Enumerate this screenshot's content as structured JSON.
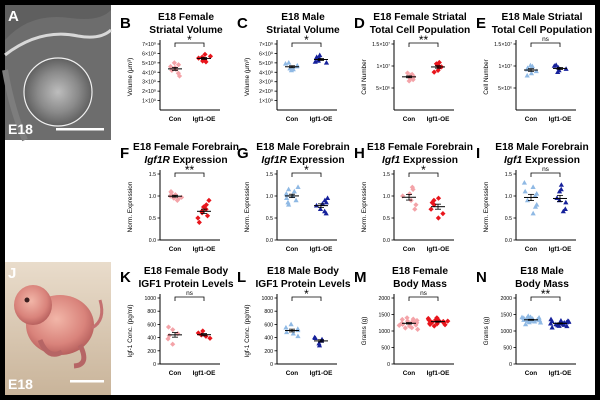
{
  "colors": {
    "female_light": "#f4a3a8",
    "female_dark": "#e8151c",
    "male_light": "#8fb9e4",
    "male_dark": "#16219b",
    "axis": "#000000",
    "bg": "#ffffff"
  },
  "images": [
    {
      "letter": "A",
      "tag": "E18",
      "kind": "brain-section"
    },
    {
      "letter": "J",
      "tag": "E18",
      "kind": "embryo-photo"
    }
  ],
  "panels": [
    {
      "letter": "B",
      "t1": "E18 Female",
      "t2": "Striatal Volume",
      "t2i": "",
      "ylabel": "Volume (μm³)",
      "ticks": [
        "1×10⁹",
        "2×10⁹",
        "3×10⁹",
        "4×10⁹",
        "5×10⁹",
        "6×10⁹",
        "7×10⁹"
      ],
      "sig": "*",
      "xcats": [
        "Con",
        "Igf1-OE"
      ],
      "sex": "female",
      "chart_data": {
        "type": "scatter",
        "categories": [
          "Con",
          "Igf1-OE"
        ],
        "ylabel": "Volume (μm³)",
        "ylim": [
          0,
          7000000000.0
        ],
        "series": [
          {
            "values": [
              4600000000.0,
              3900000000.0,
              4300000000.0,
              5000000000.0,
              4200000000.0,
              3600000000.0,
              4800000000.0,
              4500000000.0
            ]
          },
          {
            "values": [
              5300000000.0,
              5600000000.0,
              5200000000.0,
              5900000000.0,
              5500000000.0,
              5100000000.0,
              5700000000.0
            ]
          }
        ]
      }
    },
    {
      "letter": "C",
      "t1": "E18 Male",
      "t2": "Striatal Volume",
      "t2i": "",
      "ylabel": "Volume (μm³)",
      "ticks": [
        "1×10⁹",
        "2×10⁹",
        "3×10⁹",
        "4×10⁹",
        "5×10⁹",
        "6×10⁹",
        "7×10⁹"
      ],
      "sig": "*",
      "xcats": [
        "Con",
        "Igf1-OE"
      ],
      "sex": "male",
      "chart_data": {
        "type": "scatter",
        "categories": [
          "Con",
          "Igf1-OE"
        ],
        "ylabel": "Volume (μm³)",
        "ylim": [
          0,
          7000000000.0
        ],
        "series": [
          {
            "values": [
              4600000000.0,
              4200000000.0,
              5000000000.0,
              4300000000.0,
              4900000000.0,
              4400000000.0,
              4700000000.0
            ]
          },
          {
            "values": [
              5200000000.0,
              5600000000.0,
              5100000000.0,
              5500000000.0,
              5000000000.0,
              5800000000.0,
              5300000000.0
            ]
          }
        ]
      }
    },
    {
      "letter": "D",
      "t1": "E18 Female Striatal",
      "t2": "Total Cell Population",
      "t2i": "",
      "ylabel": "Cell Number",
      "ticks": [
        "5×10⁶",
        "1×10⁷",
        "1.5×10⁷"
      ],
      "sig": "**",
      "xcats": [
        "Con",
        "Igf1-OE"
      ],
      "sex": "female",
      "chart_data": {
        "type": "scatter",
        "categories": [
          "Con",
          "Igf1-OE"
        ],
        "ylabel": "Cell Number",
        "ylim": [
          0,
          15000000.0
        ],
        "series": [
          {
            "values": [
              7500000.0,
              6900000.0,
              8100000.0,
              7700000.0,
              7200000.0,
              8400000.0,
              7900000.0,
              6600000.0
            ]
          },
          {
            "values": [
              9600000.0,
              10500000.0,
              9000000.0,
              10200000.0,
              9800000.0,
              8600000.0,
              10800000.0
            ]
          }
        ]
      }
    },
    {
      "letter": "E",
      "t1": "E18 Male Striatal",
      "t2": "Total Cell Population",
      "t2i": "",
      "ylabel": "Cell Number",
      "ticks": [
        "5×10⁶",
        "1×10⁷",
        "1.5×10⁷"
      ],
      "sig": "ns",
      "xcats": [
        "Con",
        "Igf1-OE"
      ],
      "sex": "male",
      "chart_data": {
        "type": "scatter",
        "categories": [
          "Con",
          "Igf1-OE"
        ],
        "ylabel": "Cell Number",
        "ylim": [
          0,
          15000000.0
        ],
        "series": [
          {
            "values": [
              8800000.0,
              9900000.0,
              7800000.0,
              9200000.0,
              10100000.0,
              8300000.0,
              9500000.0
            ]
          },
          {
            "values": [
              9000000.0,
              10000000.0,
              8600000.0,
              9600000.0,
              10200000.0,
              9300000.0
            ]
          }
        ]
      }
    },
    {
      "letter": "F",
      "t1": "E18 Female Forebrain",
      "t2": "Expression",
      "t2i": "Igf1R",
      "ylabel": "Norm. Expression",
      "ticks": [
        "0.0",
        "0.5",
        "1.0",
        "1.5"
      ],
      "sig": "**",
      "xcats": [
        "Con",
        "Igf1-OE"
      ],
      "sex": "female",
      "chart_data": {
        "type": "scatter",
        "categories": [
          "Con",
          "Igf1-OE"
        ],
        "ylabel": "Norm. Expression",
        "ylim": [
          0,
          1.5
        ],
        "series": [
          {
            "values": [
              1.0,
              0.95,
              1.08,
              1.0,
              0.9,
              1.03,
              0.97,
              1.1,
              0.93
            ]
          },
          {
            "values": [
              0.75,
              0.5,
              0.62,
              0.8,
              0.4,
              0.7,
              0.55,
              0.9,
              0.65
            ]
          }
        ]
      }
    },
    {
      "letter": "G",
      "t1": "E18 Male Forebrain",
      "t2": "Expression",
      "t2i": "Igf1R",
      "ylabel": "Norm. Expression",
      "ticks": [
        "0.0",
        "0.5",
        "1.0",
        "1.5"
      ],
      "sig": "*",
      "xcats": [
        "Con",
        "Igf1-OE"
      ],
      "sex": "male",
      "chart_data": {
        "type": "scatter",
        "categories": [
          "Con",
          "Igf1-OE"
        ],
        "ylabel": "Norm. Expression",
        "ylim": [
          0,
          1.5
        ],
        "series": [
          {
            "values": [
              1.2,
              0.85,
              1.05,
              0.95,
              1.1,
              0.8,
              1.0,
              1.15,
              0.9,
              1.02
            ]
          },
          {
            "values": [
              0.85,
              0.7,
              0.9,
              0.65,
              0.78,
              0.95,
              0.6,
              0.82
            ]
          }
        ]
      }
    },
    {
      "letter": "H",
      "t1": "E18 Female Forebrain",
      "t2": "Expression",
      "t2i": "Igf1",
      "ylabel": "Norm. Expression",
      "ticks": [
        "0.0",
        "0.5",
        "1.0",
        "1.5"
      ],
      "sig": "*",
      "xcats": [
        "Con",
        "Igf1-OE"
      ],
      "sex": "female",
      "chart_data": {
        "type": "scatter",
        "categories": [
          "Con",
          "Igf1-OE"
        ],
        "ylabel": "Norm. Expression",
        "ylim": [
          0,
          1.5
        ],
        "series": [
          {
            "values": [
              1.0,
              0.7,
              1.2,
              0.9,
              1.05,
              0.8,
              1.15
            ]
          },
          {
            "values": [
              0.8,
              0.5,
              0.9,
              0.7,
              0.95,
              0.6,
              0.85
            ]
          }
        ]
      }
    },
    {
      "letter": "I",
      "t1": "E18 Male Forebrain",
      "t2": "Expression",
      "t2i": "Igf1",
      "ylabel": "Norm. Expression",
      "ticks": [
        "0.0",
        "0.5",
        "1.0",
        "1.5"
      ],
      "sig": "ns",
      "xcats": [
        "Con",
        "Igf1-OE"
      ],
      "sex": "male",
      "chart_data": {
        "type": "scatter",
        "categories": [
          "Con",
          "Igf1-OE"
        ],
        "ylabel": "Norm. Expression",
        "ylim": [
          0,
          1.5
        ],
        "series": [
          {
            "values": [
              1.2,
              0.8,
              1.0,
              0.6,
              1.3,
              0.9,
              1.1,
              0.75,
              1.05
            ]
          },
          {
            "values": [
              1.1,
              0.7,
              1.25,
              0.85,
              0.95,
              0.65,
              1.15,
              0.9
            ]
          }
        ]
      }
    },
    {
      "letter": "K",
      "t1": "E18 Female Body",
      "t2": "IGF1 Protein Levels",
      "t2i": "",
      "ylabel": "Igf-1 Conc. (pg/ml)",
      "ticks": [
        "0",
        "200",
        "400",
        "600",
        "800",
        "1000"
      ],
      "sig": "ns",
      "xcats": [
        "Con",
        "Igf1-OE"
      ],
      "sex": "female",
      "chart_data": {
        "type": "scatter",
        "categories": [
          "Con",
          "Igf1-OE"
        ],
        "ylabel": "Igf-1 Conc. (pg/ml)",
        "ylim": [
          0,
          1000
        ],
        "series": [
          {
            "values": [
              430,
              300,
              520,
              380,
              460,
              560
            ]
          },
          {
            "values": [
              420,
              470,
              390,
              500,
              440
            ]
          }
        ]
      }
    },
    {
      "letter": "L",
      "t1": "E18 Male Body",
      "t2": "IGF1 Protein Levels",
      "t2i": "",
      "ylabel": "Igf-1 Conc. (pg/ml)",
      "ticks": [
        "0",
        "200",
        "400",
        "600",
        "800",
        "1000"
      ],
      "sig": "*",
      "xcats": [
        "Con",
        "Igf1-OE"
      ],
      "sex": "male",
      "chart_data": {
        "type": "scatter",
        "categories": [
          "Con",
          "Igf1-OE"
        ],
        "ylabel": "Igf-1 Conc. (pg/ml)",
        "ylim": [
          0,
          1000
        ],
        "series": [
          {
            "values": [
              480,
              550,
              420,
              600,
              460,
              510,
              530
            ]
          },
          {
            "values": [
              370,
              310,
              400,
              280,
              350,
              390
            ]
          }
        ]
      }
    },
    {
      "letter": "M",
      "t1": "E18 Female",
      "t2": "Body Mass",
      "t2i": "",
      "ylabel": "Grams (g)",
      "ticks": [
        "0",
        "500",
        "1000",
        "1500",
        "2000"
      ],
      "sig": "ns",
      "xcats": [
        "Con",
        "Igf1-OE"
      ],
      "sex": "female",
      "chart_data": {
        "type": "scatter",
        "categories": [
          "Con",
          "Igf1-OE"
        ],
        "ylabel": "Grams (g)",
        "ylim": [
          0,
          2000
        ],
        "series": [
          {
            "values": [
              1250,
              1100,
              1350,
              1200,
              1300,
              1050,
              1400,
              1150,
              1250,
              1320,
              1180,
              1280,
              1220,
              1090,
              1360,
              1240,
              1300,
              1170
            ]
          },
          {
            "values": [
              1300,
              1200,
              1400,
              1250,
              1350,
              1150,
              1280,
              1330,
              1220,
              1380,
              1260,
              1310,
              1190,
              1290,
              1340,
              1230,
              1270,
              1360
            ]
          }
        ]
      }
    },
    {
      "letter": "N",
      "t1": "E18 Male",
      "t2": "Body Mass",
      "t2i": "",
      "ylabel": "Grams (g)",
      "ticks": [
        "0",
        "500",
        "1000",
        "1500",
        "2000"
      ],
      "sig": "**",
      "xcats": [
        "Con",
        "Igf1-OE"
      ],
      "sex": "male",
      "chart_data": {
        "type": "scatter",
        "categories": [
          "Con",
          "Igf1-OE"
        ],
        "ylabel": "Grams (g)",
        "ylim": [
          0,
          2000
        ],
        "series": [
          {
            "values": [
              1350,
              1250,
              1450,
              1300,
              1400,
              1200,
              1380,
              1320,
              1420,
              1280,
              1360,
              1330,
              1410,
              1260,
              1390,
              1340,
              1300,
              1370
            ]
          },
          {
            "values": [
              1250,
              1150,
              1300,
              1100,
              1280,
              1200,
              1350,
              1180,
              1260,
              1220,
              1310,
              1140,
              1240,
              1290,
              1170,
              1230,
              1270,
              1210
            ]
          }
        ]
      }
    }
  ]
}
